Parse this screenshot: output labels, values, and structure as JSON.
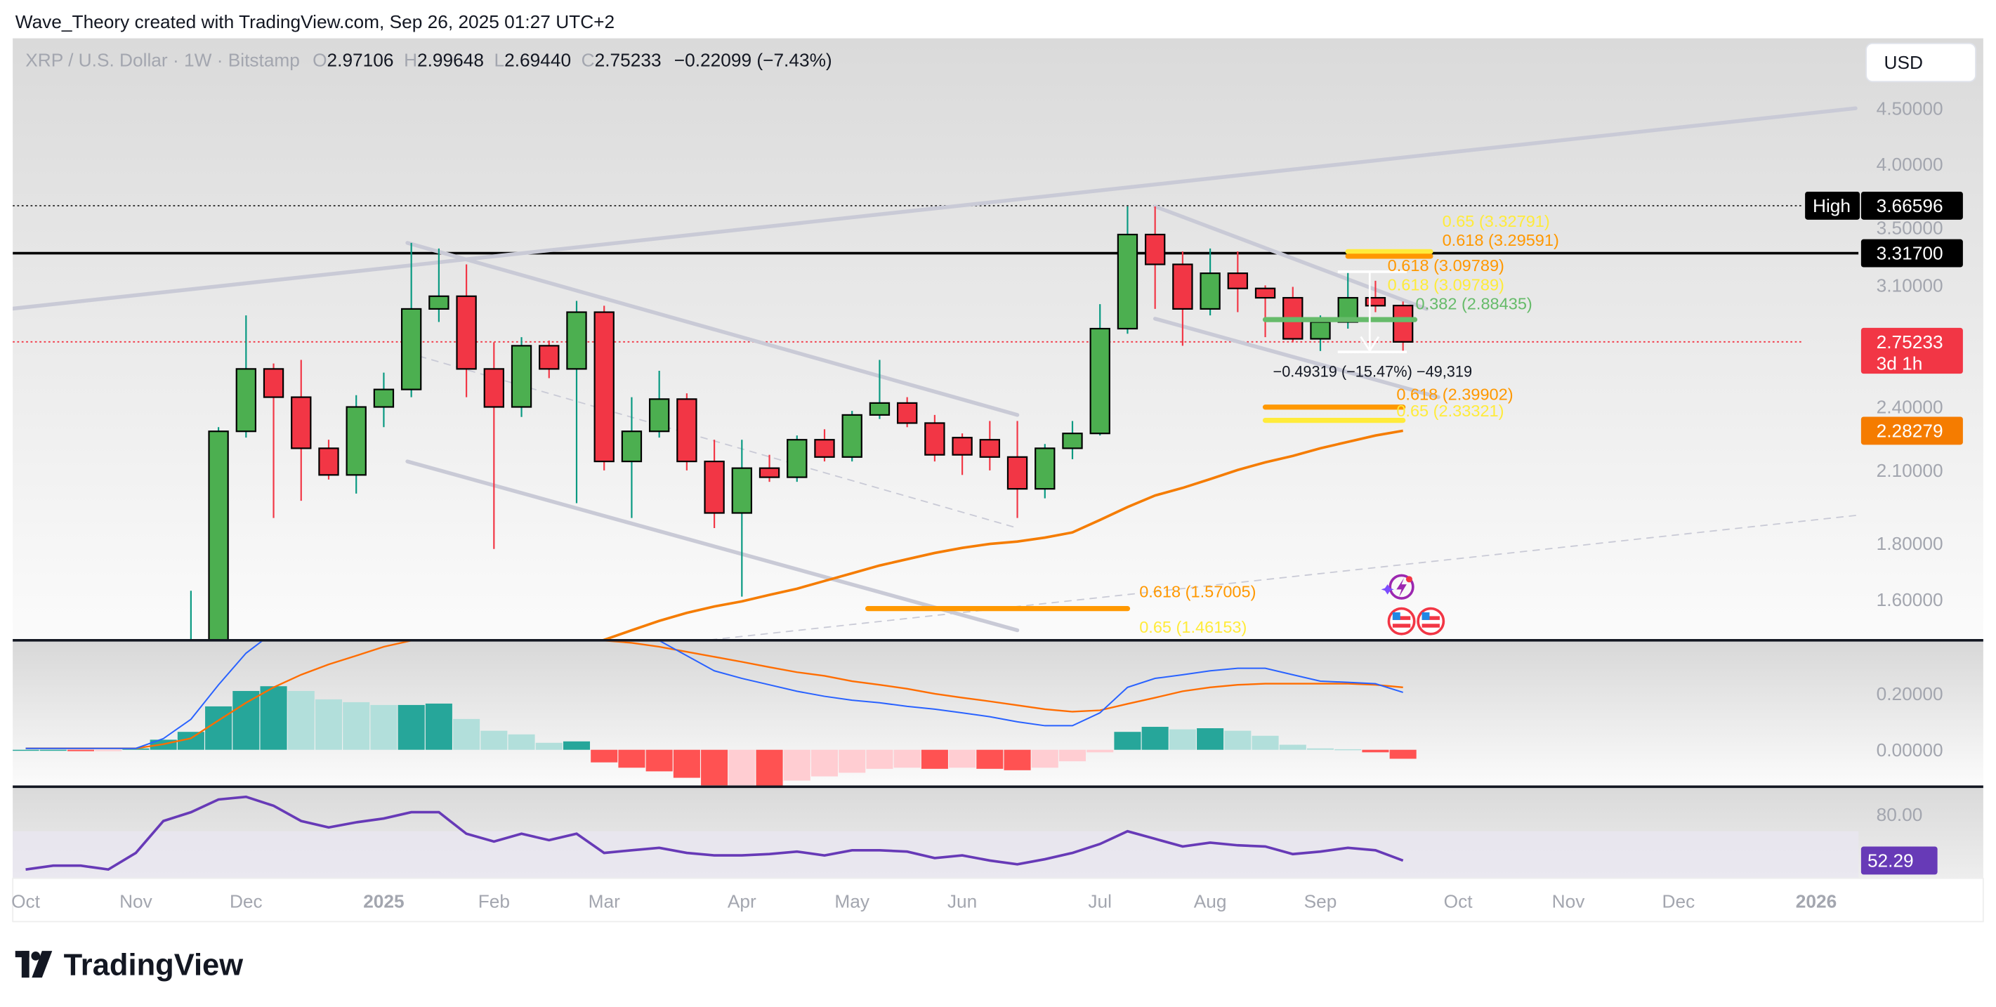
{
  "header": {
    "attribution": "Wave_Theory created with TradingView.com, Sep 26, 2025 01:27 UTC+2",
    "symbol": "XRP / U.S. Dollar · 1W · Bitstamp",
    "ohlc": {
      "o_label": "O",
      "o": "2.97106",
      "h_label": "H",
      "h": "2.99648",
      "l_label": "L",
      "l": "2.69440",
      "c_label": "C",
      "c": "2.75233",
      "change": "−0.22099 (−7.43%)"
    },
    "currency_button": "USD"
  },
  "footer": {
    "logo_text": "TradingView"
  },
  "colors": {
    "up": "#4CAF50",
    "down": "#F23645",
    "ema": "#F57C00",
    "macd": "#2962FF",
    "signal": "#FF6D00",
    "rsi": "#673AB7",
    "hist_up_strong": "#26A69A",
    "hist_up_weak": "#B2DFDB",
    "hist_down_strong": "#FF5252",
    "hist_down_weak": "#FFCDD2",
    "fib_orange": "#FF9800",
    "fib_yellow": "#FFEB3B",
    "fib_green": "#66BB6A"
  },
  "chart_data": {
    "type": "candlestick",
    "title": "XRP / U.S. Dollar · 1W · Bitstamp",
    "price_scale": "log",
    "ylim": [
      1.47,
      5.0
    ],
    "price_ticks": [
      "4.50000",
      "4.00000",
      "3.50000",
      "3.10000",
      "2.40000",
      "2.10000",
      "1.80000",
      "1.60000"
    ],
    "x_ticks": [
      {
        "label": "Oct",
        "date": "2024-10-07"
      },
      {
        "label": "Nov",
        "date": "2024-11-04"
      },
      {
        "label": "Dec",
        "date": "2024-12-02"
      },
      {
        "label": "2025",
        "date": "2025-01-06",
        "bold": true
      },
      {
        "label": "Feb",
        "date": "2025-02-03"
      },
      {
        "label": "Mar",
        "date": "2025-03-03"
      },
      {
        "label": "Apr",
        "date": "2025-04-07"
      },
      {
        "label": "May",
        "date": "2025-05-05"
      },
      {
        "label": "Jun",
        "date": "2025-06-02"
      },
      {
        "label": "Jul",
        "date": "2025-07-07"
      },
      {
        "label": "Aug",
        "date": "2025-08-04"
      },
      {
        "label": "Sep",
        "date": "2025-09-01"
      },
      {
        "label": "Oct",
        "date": "2025-10-06"
      },
      {
        "label": "Nov",
        "date": "2025-11-03"
      },
      {
        "label": "Dec",
        "date": "2025-12-01"
      },
      {
        "label": "2026",
        "date": "2026-01-05",
        "bold": true
      }
    ],
    "candles": [
      {
        "date": "2024-11-18",
        "o": 1.1,
        "h": 1.63,
        "l": 1.05,
        "c": 1.45
      },
      {
        "date": "2024-11-25",
        "o": 1.45,
        "h": 2.3,
        "l": 1.4,
        "c": 2.28
      },
      {
        "date": "2024-12-02",
        "o": 2.28,
        "h": 2.91,
        "l": 2.25,
        "c": 2.6
      },
      {
        "date": "2024-12-09",
        "o": 2.6,
        "h": 2.63,
        "l": 1.9,
        "c": 2.45
      },
      {
        "date": "2024-12-16",
        "o": 2.45,
        "h": 2.65,
        "l": 1.97,
        "c": 2.2
      },
      {
        "date": "2024-12-23",
        "o": 2.2,
        "h": 2.24,
        "l": 2.06,
        "c": 2.08
      },
      {
        "date": "2024-12-30",
        "o": 2.08,
        "h": 2.46,
        "l": 2.0,
        "c": 2.4
      },
      {
        "date": "2025-01-06",
        "o": 2.4,
        "h": 2.58,
        "l": 2.3,
        "c": 2.49
      },
      {
        "date": "2025-01-13",
        "o": 2.49,
        "h": 3.39,
        "l": 2.45,
        "c": 2.95
      },
      {
        "date": "2025-01-20",
        "o": 2.95,
        "h": 3.35,
        "l": 2.87,
        "c": 3.03
      },
      {
        "date": "2025-01-27",
        "o": 3.03,
        "h": 3.24,
        "l": 2.45,
        "c": 2.6
      },
      {
        "date": "2025-02-03",
        "o": 2.6,
        "h": 2.75,
        "l": 1.78,
        "c": 2.4
      },
      {
        "date": "2025-02-10",
        "o": 2.4,
        "h": 2.78,
        "l": 2.35,
        "c": 2.73
      },
      {
        "date": "2025-02-17",
        "o": 2.73,
        "h": 2.76,
        "l": 2.55,
        "c": 2.6
      },
      {
        "date": "2025-02-24",
        "o": 2.6,
        "h": 3.0,
        "l": 1.96,
        "c": 2.93
      },
      {
        "date": "2025-03-03",
        "o": 2.93,
        "h": 2.97,
        "l": 2.1,
        "c": 2.14
      },
      {
        "date": "2025-03-10",
        "o": 2.14,
        "h": 2.45,
        "l": 1.9,
        "c": 2.28
      },
      {
        "date": "2025-03-17",
        "o": 2.28,
        "h": 2.59,
        "l": 2.25,
        "c": 2.44
      },
      {
        "date": "2025-03-24",
        "o": 2.44,
        "h": 2.47,
        "l": 2.1,
        "c": 2.14
      },
      {
        "date": "2025-03-31",
        "o": 2.14,
        "h": 2.24,
        "l": 1.86,
        "c": 1.92
      },
      {
        "date": "2025-04-07",
        "o": 1.92,
        "h": 2.24,
        "l": 1.61,
        "c": 2.11
      },
      {
        "date": "2025-04-14",
        "o": 2.11,
        "h": 2.17,
        "l": 2.05,
        "c": 2.07
      },
      {
        "date": "2025-04-21",
        "o": 2.07,
        "h": 2.26,
        "l": 2.05,
        "c": 2.24
      },
      {
        "date": "2025-04-28",
        "o": 2.24,
        "h": 2.29,
        "l": 2.14,
        "c": 2.16
      },
      {
        "date": "2025-05-05",
        "o": 2.16,
        "h": 2.38,
        "l": 2.14,
        "c": 2.36
      },
      {
        "date": "2025-05-12",
        "o": 2.36,
        "h": 2.65,
        "l": 2.34,
        "c": 2.42
      },
      {
        "date": "2025-05-19",
        "o": 2.42,
        "h": 2.45,
        "l": 2.3,
        "c": 2.32
      },
      {
        "date": "2025-05-26",
        "o": 2.32,
        "h": 2.36,
        "l": 2.14,
        "c": 2.17
      },
      {
        "date": "2025-06-02",
        "o": 2.25,
        "h": 2.27,
        "l": 2.08,
        "c": 2.17
      },
      {
        "date": "2025-06-09",
        "o": 2.24,
        "h": 2.33,
        "l": 2.1,
        "c": 2.16
      },
      {
        "date": "2025-06-16",
        "o": 2.16,
        "h": 2.33,
        "l": 1.9,
        "c": 2.02
      },
      {
        "date": "2025-06-23",
        "o": 2.02,
        "h": 2.22,
        "l": 1.98,
        "c": 2.2
      },
      {
        "date": "2025-06-30",
        "o": 2.2,
        "h": 2.33,
        "l": 2.15,
        "c": 2.27
      },
      {
        "date": "2025-07-07",
        "o": 2.27,
        "h": 2.98,
        "l": 2.26,
        "c": 2.83
      },
      {
        "date": "2025-07-14",
        "o": 2.83,
        "h": 3.66,
        "l": 2.8,
        "c": 3.45
      },
      {
        "date": "2025-07-21",
        "o": 3.45,
        "h": 3.66,
        "l": 2.95,
        "c": 3.24
      },
      {
        "date": "2025-07-28",
        "o": 3.24,
        "h": 3.33,
        "l": 2.73,
        "c": 2.95
      },
      {
        "date": "2025-08-04",
        "o": 2.95,
        "h": 3.35,
        "l": 2.91,
        "c": 3.18
      },
      {
        "date": "2025-08-11",
        "o": 3.18,
        "h": 3.33,
        "l": 2.93,
        "c": 3.08
      },
      {
        "date": "2025-08-18",
        "o": 3.08,
        "h": 3.1,
        "l": 2.78,
        "c": 3.02
      },
      {
        "date": "2025-08-25",
        "o": 3.02,
        "h": 3.09,
        "l": 2.75,
        "c": 2.77
      },
      {
        "date": "2025-09-01",
        "o": 2.77,
        "h": 2.91,
        "l": 2.7,
        "c": 2.87
      },
      {
        "date": "2025-09-08",
        "o": 2.87,
        "h": 3.19,
        "l": 2.83,
        "c": 3.02
      },
      {
        "date": "2025-09-15",
        "o": 3.02,
        "h": 3.13,
        "l": 2.93,
        "c": 2.97
      },
      {
        "date": "2025-09-22",
        "o": 2.97106,
        "h": 2.99648,
        "l": 2.6944,
        "c": 2.75233
      }
    ],
    "ema": {
      "start_date": "2025-02-24",
      "values": [
        1.44,
        1.47,
        1.5,
        1.53,
        1.556,
        1.577,
        1.594,
        1.616,
        1.637,
        1.664,
        1.691,
        1.719,
        1.742,
        1.765,
        1.784,
        1.799,
        1.808,
        1.823,
        1.843,
        1.892,
        1.944,
        1.992,
        2.024,
        2.062,
        2.102,
        2.136,
        2.165,
        2.2,
        2.23,
        2.26,
        2.28279
      ]
    },
    "price_badges": [
      {
        "label": "High",
        "value": "3.66596",
        "price": 3.66596,
        "color": "#000000"
      },
      {
        "value": "3.31700",
        "price": 3.317,
        "color": "#000000"
      },
      {
        "value": "2.75233",
        "sub": "3d 1h",
        "price": 2.75233,
        "color": "#F23645"
      },
      {
        "value": "2.28279",
        "price": 2.28279,
        "color": "#F57C00"
      }
    ],
    "horizontal_lines": [
      {
        "price": 3.66596,
        "style": "dotted",
        "color": "#333333"
      },
      {
        "price": 3.317,
        "style": "solid",
        "color": "#000000"
      },
      {
        "price": 2.75233,
        "style": "dotted",
        "color": "#F23645"
      }
    ],
    "trendlines": [
      {
        "from": [
          "2024-10-03",
          2.95
        ],
        "to": [
          "2026-01-15",
          4.5
        ],
        "color": "#c9cad6"
      },
      {
        "from": [
          "2025-01-12",
          3.39
        ],
        "to": [
          "2025-06-16",
          2.36
        ],
        "color": "#c9cad6"
      },
      {
        "from": [
          "2025-01-12",
          2.14
        ],
        "to": [
          "2025-06-16",
          1.5
        ],
        "color": "#c9cad6"
      },
      {
        "from": [
          "2025-01-12",
          2.69
        ],
        "to": [
          "2025-06-16",
          1.86
        ],
        "color": "#c9cad6",
        "dashed": true
      },
      {
        "from": [
          "2025-07-21",
          3.66
        ],
        "to": [
          "2025-09-28",
          2.95
        ],
        "color": "#c9cad6"
      },
      {
        "from": [
          "2025-07-21",
          2.89
        ],
        "to": [
          "2025-10-01",
          2.45
        ],
        "color": "#c9cad6"
      },
      {
        "from": [
          "2025-03-30",
          1.47
        ],
        "to": [
          "2026-01-15",
          1.91
        ],
        "color": "#c9cad6",
        "dashed": true
      }
    ],
    "fib_levels": [
      {
        "text": "0.618 (1.57005)",
        "price": 1.57005,
        "from": "2025-05-09",
        "to": "2025-07-14",
        "color": "#FF9800"
      },
      {
        "text": "0.65 (1.46153)",
        "price": 1.46153,
        "color": "#FFEB3B",
        "label_only": true
      },
      {
        "text": "0.618 (2.39902)",
        "price": 2.39902,
        "from": "2025-08-18",
        "to": "2025-09-22",
        "color": "#FF9800"
      },
      {
        "text": "0.65 (2.33321)",
        "price": 2.33321,
        "from": "2025-08-18",
        "to": "2025-09-22",
        "color": "#FFEB3B"
      },
      {
        "text": "0.382 (2.88435)",
        "price": 2.88435,
        "from": "2025-08-18",
        "to": "2025-09-25",
        "color": "#66BB6A"
      },
      {
        "text": "0.65 (3.32791)",
        "price": 3.32791,
        "from": "2025-09-08",
        "to": "2025-09-29",
        "color": "#FFEB3B"
      },
      {
        "text": "0.618 (3.29591)",
        "price": 3.29591,
        "from": "2025-09-08",
        "to": "2025-09-29",
        "color": "#FF9800"
      },
      {
        "text": "0.618 (3.09789)",
        "price": 3.09789,
        "color": "#FFEB3B",
        "label_only": true
      },
      {
        "text": "0.618 (3.09789)",
        "price": 3.09789,
        "color": "#FF9800",
        "label_only": true
      }
    ],
    "measure": {
      "from": [
        "2025-09-08",
        3.19
      ],
      "to": [
        "2025-09-22",
        2.6944
      ],
      "text": "−0.49319 (−15.47%) −49,319"
    },
    "events": [
      {
        "icon": "lightning-event-icon"
      },
      {
        "icon": "us-flag-icon"
      },
      {
        "icon": "us-flag-icon"
      }
    ],
    "macd": {
      "start_date": "2024-10-07",
      "ticks": [
        "0.20000",
        "0.00000"
      ],
      "histogram": [
        0,
        0,
        -0.005,
        -0.005,
        0.005,
        0.036,
        0.064,
        0.155,
        0.21,
        0.227,
        0.21,
        0.18,
        0.17,
        0.16,
        0.16,
        0.165,
        0.11,
        0.068,
        0.055,
        0.025,
        0.03,
        -0.045,
        -0.064,
        -0.077,
        -0.1,
        -0.127,
        -0.127,
        -0.13,
        -0.11,
        -0.095,
        -0.082,
        -0.068,
        -0.064,
        -0.068,
        -0.064,
        -0.068,
        -0.073,
        -0.064,
        -0.041,
        -0.009,
        0.064,
        0.082,
        0.073,
        0.077,
        0.068,
        0.05,
        0.018,
        0.005,
        0.002,
        -0.009,
        -0.032
      ],
      "macd": [
        0.005,
        0.005,
        0.005,
        0.005,
        0.005,
        0.04,
        0.109,
        0.232,
        0.345,
        0.42,
        0.47,
        0.5,
        0.52,
        0.53,
        0.53,
        0.52,
        0.5,
        0.47,
        0.46,
        0.45,
        0.44,
        0.43,
        0.41,
        0.39,
        0.336,
        0.282,
        0.255,
        0.232,
        0.209,
        0.191,
        0.177,
        0.168,
        0.155,
        0.145,
        0.132,
        0.118,
        0.1,
        0.086,
        0.086,
        0.132,
        0.223,
        0.255,
        0.268,
        0.282,
        0.291,
        0.291,
        0.268,
        0.245,
        0.241,
        0.236,
        0.205
      ],
      "signal": [
        0.005,
        0.005,
        0.005,
        0.005,
        0.005,
        0.02,
        0.041,
        0.105,
        0.168,
        0.223,
        0.268,
        0.305,
        0.336,
        0.368,
        0.39,
        0.41,
        0.43,
        0.44,
        0.44,
        0.43,
        0.41,
        0.39,
        0.382,
        0.368,
        0.35,
        0.332,
        0.314,
        0.295,
        0.277,
        0.264,
        0.245,
        0.232,
        0.218,
        0.2,
        0.186,
        0.173,
        0.159,
        0.145,
        0.136,
        0.141,
        0.164,
        0.186,
        0.209,
        0.223,
        0.232,
        0.236,
        0.236,
        0.236,
        0.236,
        0.232,
        0.223
      ]
    },
    "rsi": {
      "start_date": "2024-10-07",
      "tick": "80.00",
      "band": [
        30,
        70
      ],
      "current": "52.29",
      "values": [
        46.9,
        49.2,
        49.2,
        46.9,
        56.9,
        76.2,
        81.5,
        89.2,
        90.8,
        85.4,
        76.2,
        72.3,
        75.4,
        77.7,
        81.5,
        81.5,
        68.5,
        63.8,
        68.5,
        64.6,
        68.5,
        56.9,
        58.5,
        60,
        56.9,
        55.4,
        55.4,
        56.2,
        57.7,
        55.4,
        58.5,
        58.5,
        57.7,
        53.8,
        55.4,
        52.3,
        50,
        53.1,
        56.9,
        62.3,
        70,
        65.4,
        60.8,
        63.1,
        61.5,
        60.8,
        56.2,
        57.7,
        60,
        58.5,
        52.29
      ]
    }
  }
}
